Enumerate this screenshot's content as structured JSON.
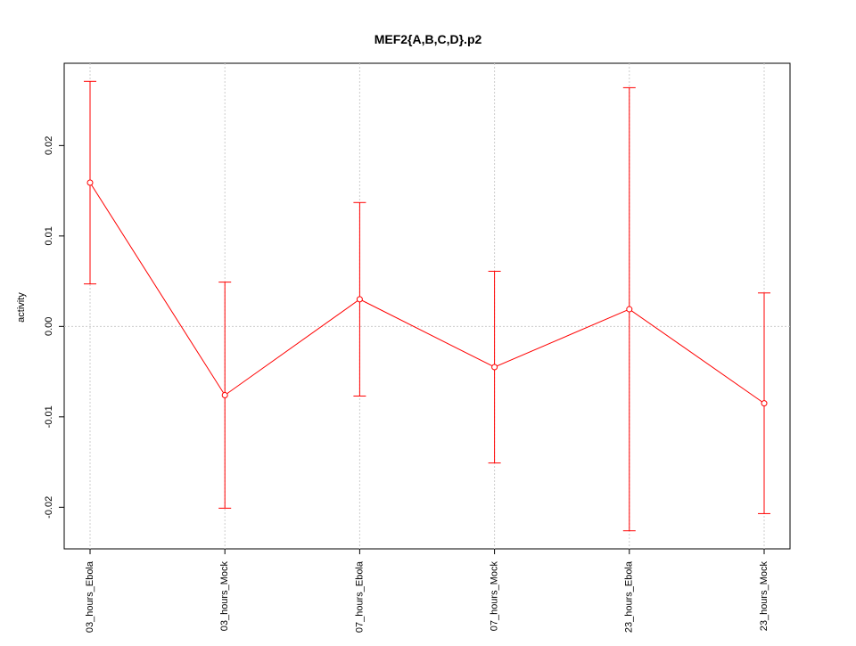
{
  "chart_data": {
    "type": "line",
    "title": "MEF2{A,B,C,D}.p2",
    "y_label": "activity",
    "categories": [
      "03_hours_Ebola",
      "03_hours_Mock",
      "07_hours_Ebola",
      "07_hours_Mock",
      "23_hours_Ebola",
      "23_hours_Mock"
    ],
    "series": [
      {
        "name": "activity",
        "color": "#ff0000",
        "values": [
          0.0159,
          -0.0076,
          0.003,
          -0.0045,
          0.0019,
          -0.0085
        ],
        "errors": [
          0.0112,
          0.0125,
          0.0107,
          0.0106,
          0.0245,
          0.0122
        ]
      }
    ],
    "ylim": [
      -0.0246,
      0.0291
    ],
    "yticks": [
      {
        "value": -0.02,
        "label": "-0.02"
      },
      {
        "value": -0.01,
        "label": "-0.01"
      },
      {
        "value": 0,
        "label": "0.00"
      },
      {
        "value": 0.01,
        "label": "0.01"
      },
      {
        "value": 0.02,
        "label": "0.02"
      }
    ],
    "reference_line": 0,
    "grid": true
  }
}
